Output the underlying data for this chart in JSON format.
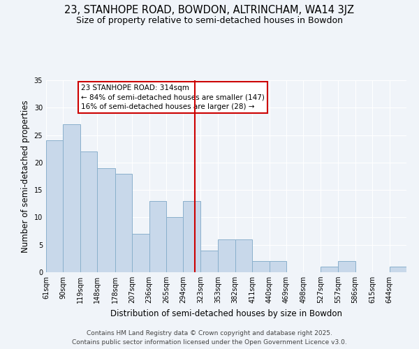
{
  "title": "23, STANHOPE ROAD, BOWDON, ALTRINCHAM, WA14 3JZ",
  "subtitle": "Size of property relative to semi-detached houses in Bowdon",
  "xlabel": "Distribution of semi-detached houses by size in Bowdon",
  "ylabel": "Number of semi-detached properties",
  "bar_color": "#c8d8ea",
  "bar_edge_color": "#8ab0cc",
  "background_color": "#f0f4f9",
  "grid_color": "#ffffff",
  "bin_labels": [
    "61sqm",
    "90sqm",
    "119sqm",
    "148sqm",
    "178sqm",
    "207sqm",
    "236sqm",
    "265sqm",
    "294sqm",
    "323sqm",
    "353sqm",
    "382sqm",
    "411sqm",
    "440sqm",
    "469sqm",
    "498sqm",
    "527sqm",
    "557sqm",
    "586sqm",
    "615sqm",
    "644sqm"
  ],
  "bar_heights": [
    24,
    27,
    22,
    19,
    18,
    7,
    13,
    10,
    13,
    4,
    6,
    6,
    2,
    2,
    0,
    0,
    1,
    2,
    0,
    0,
    1
  ],
  "bin_edges": [
    61,
    90,
    119,
    148,
    178,
    207,
    236,
    265,
    294,
    323,
    353,
    382,
    411,
    440,
    469,
    498,
    527,
    557,
    586,
    615,
    644,
    673
  ],
  "vline_x": 314,
  "vline_color": "#cc0000",
  "annotation_title": "23 STANHOPE ROAD: 314sqm",
  "annotation_line1": "← 84% of semi-detached houses are smaller (147)",
  "annotation_line2": "16% of semi-detached houses are larger (28) →",
  "annotation_box_edge": "#cc0000",
  "annotation_box_face": "#ffffff",
  "ylim": [
    0,
    35
  ],
  "yticks": [
    0,
    5,
    10,
    15,
    20,
    25,
    30,
    35
  ],
  "footer_line1": "Contains HM Land Registry data © Crown copyright and database right 2025.",
  "footer_line2": "Contains public sector information licensed under the Open Government Licence v3.0.",
  "title_fontsize": 10.5,
  "subtitle_fontsize": 9,
  "axis_label_fontsize": 8.5,
  "tick_fontsize": 7,
  "footer_fontsize": 6.5,
  "ann_fontsize": 7.5
}
